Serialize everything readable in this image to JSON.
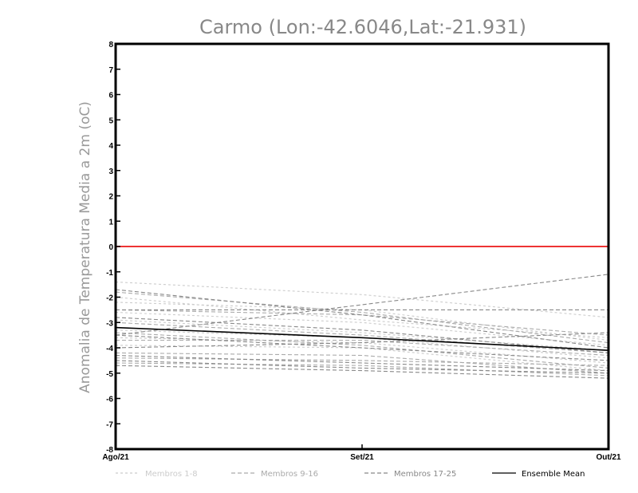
{
  "chart_data": {
    "type": "line",
    "title": "Carmo (Lon:-42.6046,Lat:-21.931)",
    "ylabel": "Anomalia de Temperatura Media a 2m (oC)",
    "xlabel": "",
    "categories": [
      "Ago/21",
      "Set/21",
      "Out/21"
    ],
    "ylim": [
      -8,
      8
    ],
    "yticks": [
      "8",
      "7",
      "6",
      "5",
      "4",
      "3",
      "2",
      "1",
      "0",
      "-1",
      "-2",
      "-3",
      "-4",
      "-5",
      "-6",
      "-7",
      "-8"
    ],
    "zero_line_color": "#ee3333",
    "legend": [
      {
        "label": "Membros 1-8",
        "color": "#cccccc",
        "dash": "dotted"
      },
      {
        "label": "Membros 9-16",
        "color": "#aaaaaa",
        "dash": "dashed"
      },
      {
        "label": "Membros 17-25",
        "color": "#888888",
        "dash": "dashed"
      },
      {
        "label": "Ensemble Mean",
        "color": "#000000",
        "dash": "solid"
      }
    ],
    "series": [
      {
        "group": 0,
        "values": [
          -1.4,
          -1.9,
          -2.8
        ]
      },
      {
        "group": 0,
        "values": [
          -2.2,
          -2.5,
          -3.7
        ]
      },
      {
        "group": 0,
        "values": [
          -2.6,
          -3.0,
          -3.9
        ]
      },
      {
        "group": 0,
        "values": [
          -2.9,
          -3.4,
          -4.1
        ]
      },
      {
        "group": 0,
        "values": [
          -3.3,
          -3.6,
          -4.4
        ]
      },
      {
        "group": 0,
        "values": [
          -3.6,
          -3.8,
          -4.6
        ]
      },
      {
        "group": 0,
        "values": [
          -3.9,
          -4.0,
          -4.9
        ]
      },
      {
        "group": 0,
        "values": [
          -2.0,
          -2.9,
          -3.6
        ]
      },
      {
        "group": 1,
        "values": [
          -1.8,
          -2.6,
          -3.8
        ]
      },
      {
        "group": 1,
        "values": [
          -2.5,
          -2.7,
          -3.5
        ]
      },
      {
        "group": 1,
        "values": [
          -3.0,
          -3.5,
          -4.2
        ]
      },
      {
        "group": 1,
        "values": [
          -3.4,
          -3.9,
          -4.8
        ]
      },
      {
        "group": 1,
        "values": [
          -3.7,
          -3.7,
          -4.3
        ]
      },
      {
        "group": 1,
        "values": [
          -4.2,
          -4.3,
          -5.0
        ]
      },
      {
        "group": 1,
        "values": [
          -4.4,
          -4.5,
          -4.7
        ]
      },
      {
        "group": 1,
        "values": [
          -4.6,
          -4.7,
          -5.1
        ]
      },
      {
        "group": 2,
        "values": [
          -2.5,
          -2.5,
          -2.5
        ]
      },
      {
        "group": 2,
        "values": [
          -3.5,
          -2.3,
          -1.1
        ]
      },
      {
        "group": 2,
        "values": [
          -1.7,
          -2.7,
          -4.0
        ]
      },
      {
        "group": 2,
        "values": [
          -2.8,
          -3.3,
          -4.2
        ]
      },
      {
        "group": 2,
        "values": [
          -3.5,
          -4.0,
          -4.5
        ]
      },
      {
        "group": 2,
        "values": [
          -4.0,
          -3.8,
          -3.4
        ]
      },
      {
        "group": 2,
        "values": [
          -4.3,
          -4.6,
          -4.9
        ]
      },
      {
        "group": 2,
        "values": [
          -4.5,
          -4.8,
          -5.0
        ]
      },
      {
        "group": 2,
        "values": [
          -4.7,
          -4.9,
          -5.2
        ]
      },
      {
        "group": 3,
        "values": [
          -3.2,
          -3.6,
          -4.1
        ]
      }
    ]
  }
}
